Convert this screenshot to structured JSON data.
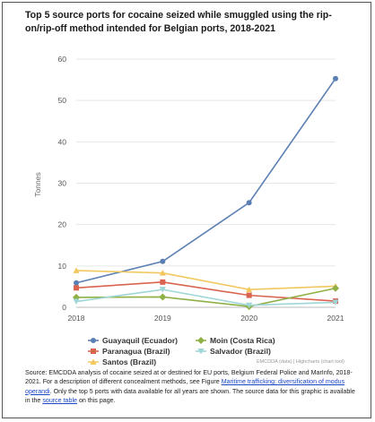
{
  "title": "Top 5 source ports for cocaine seized while smuggled using the rip-on/rip-off method intended for Belgian ports, 2018-2021",
  "credits": "EMCDDA (data) | Highcharts (chart tool)",
  "source": {
    "text_before_link1": "Source: EMCDDA analysis of cocaine seized at or destined for EU ports, Belgium Federal Police and MarInfo, 2018-2021. For a description of different concealment methods, see Figure ",
    "link1": "Maritime trafficking: diversification of modus operandi",
    "text_between": ". Only the top 5 ports with data available for all years are shown. The source data for this graphic is available in the ",
    "link2": "source table",
    "text_after": " on this page."
  },
  "chart_data": {
    "type": "line",
    "title": "Top 5 source ports for cocaine seized while smuggled using the rip-on/rip-off method intended for Belgian ports, 2018-2021",
    "xlabel": "",
    "ylabel": "Tonnes",
    "x": [
      "2018",
      "2019",
      "2020",
      "2021"
    ],
    "ylim": [
      0,
      60
    ],
    "yticks": [
      0,
      10,
      20,
      30,
      40,
      50,
      60
    ],
    "grid": true,
    "legend_position": "bottom",
    "series": [
      {
        "name": "Guayaquil (Ecuador)",
        "color": "#5b7fb3",
        "marker": "circle",
        "values": [
          5.9,
          11.1,
          25.3,
          55.3
        ]
      },
      {
        "name": "Paranagua (Brazil)",
        "color": "#d9634f",
        "marker": "square",
        "values": [
          4.7,
          6.1,
          2.9,
          1.5
        ]
      },
      {
        "name": "Santos (Brazil)",
        "color": "#f2c75e",
        "marker": "triangle-up",
        "values": [
          8.9,
          8.3,
          4.3,
          5.1
        ]
      },
      {
        "name": "Moin (Costa Rica)",
        "color": "#8fb046",
        "marker": "diamond",
        "values": [
          2.4,
          2.5,
          0.2,
          4.6
        ]
      },
      {
        "name": "Salvador (Brazil)",
        "color": "#9fd6d6",
        "marker": "triangle-down",
        "values": [
          1.4,
          4.3,
          0.5,
          1.2
        ]
      }
    ]
  }
}
